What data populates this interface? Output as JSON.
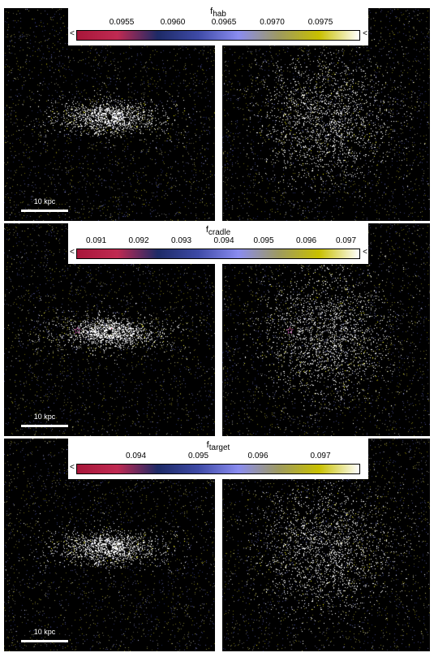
{
  "rows": [
    {
      "cbar_label": "f",
      "cbar_sub": "hab",
      "ticks": [
        "0.0955",
        "0.0960",
        "0.0965",
        "0.0970",
        "0.0975"
      ],
      "tick_pos": [
        0.16,
        0.34,
        0.52,
        0.69,
        0.86
      ],
      "arrow_left": "<",
      "arrow_right": "<",
      "scale_label": "10 kpc",
      "has_star": false
    },
    {
      "cbar_label": "f",
      "cbar_sub": "cradle",
      "ticks": [
        "0.091",
        "0.092",
        "0.093",
        "0.094",
        "0.095",
        "0.096",
        "0.097"
      ],
      "tick_pos": [
        0.07,
        0.22,
        0.37,
        0.52,
        0.66,
        0.81,
        0.95
      ],
      "arrow_left": "<",
      "arrow_right": "<",
      "scale_label": "10 kpc",
      "has_star": true
    },
    {
      "cbar_label": "f",
      "cbar_sub": "target",
      "ticks": [
        "0.094",
        "0.095",
        "0.096",
        "0.097"
      ],
      "tick_pos": [
        0.21,
        0.43,
        0.64,
        0.86
      ],
      "arrow_left": "<",
      "arrow_right": "",
      "scale_label": "10 kpc",
      "has_star": false
    }
  ],
  "colors": {
    "gradient": [
      "#a8173a",
      "#c02a52",
      "#1d2a66",
      "#3e4aa6",
      "#8a8cf0",
      "#9e9a60",
      "#c8c000",
      "#ffffff"
    ],
    "star": "#ff66cc"
  }
}
